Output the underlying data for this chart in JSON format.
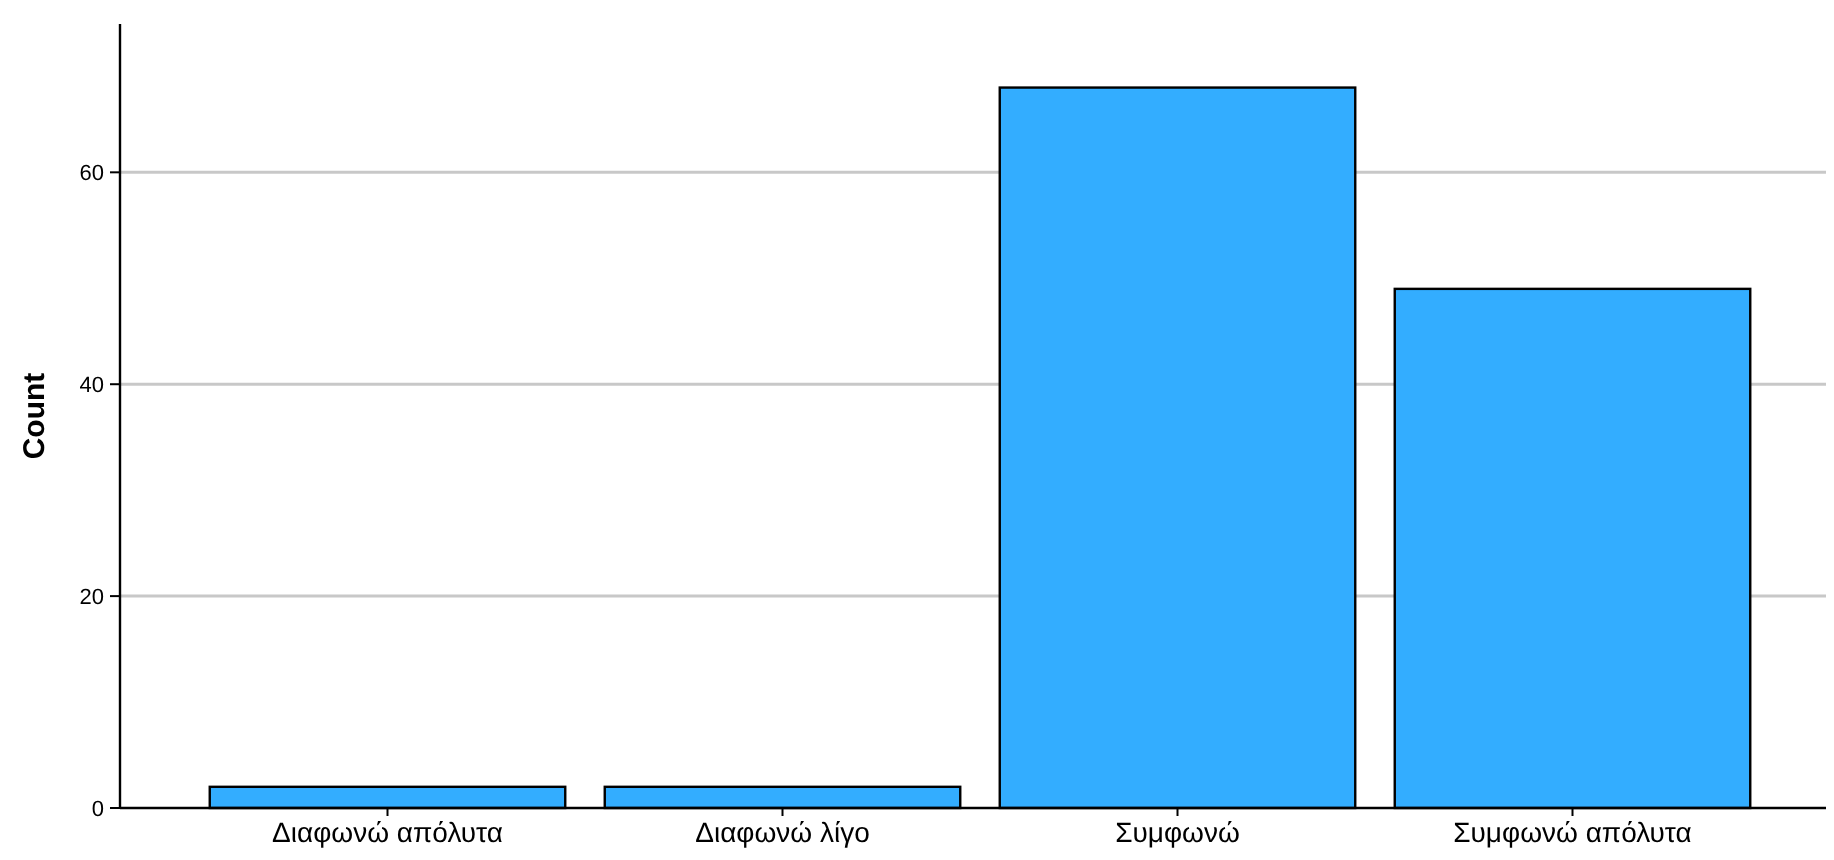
{
  "chart_data": {
    "type": "bar",
    "ylabel": "Count",
    "categories": [
      "Διαφωνώ απόλυτα",
      "Διαφωνώ λίγο",
      "Συμφωνώ",
      "Συμφωνώ απόλυτα"
    ],
    "values": [
      2,
      2,
      68,
      49
    ],
    "color": "#33adff",
    "ylim": [
      0,
      74
    ],
    "yticks": [
      0,
      20,
      40,
      60
    ],
    "grid": "y"
  }
}
